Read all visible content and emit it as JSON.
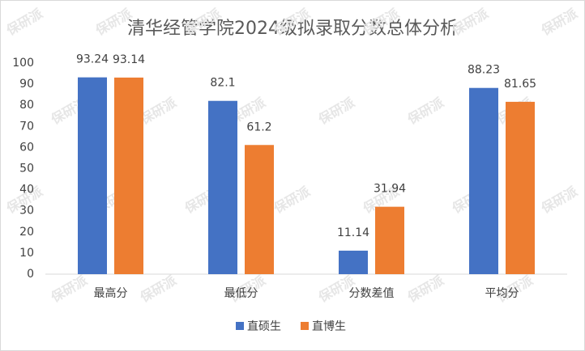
{
  "chart_data": {
    "type": "bar",
    "title": "清华经管学院2024级拟录取分数总体分析",
    "categories": [
      "最高分",
      "最低分",
      "分数差值",
      "平均分"
    ],
    "series": [
      {
        "name": "直硕生",
        "color": "#4472c4",
        "values": [
          93.24,
          82.1,
          11.14,
          88.23
        ]
      },
      {
        "name": "直博生",
        "color": "#ed7d31",
        "values": [
          93.14,
          61.2,
          31.94,
          81.65
        ]
      }
    ],
    "ylim": [
      0,
      100
    ],
    "yticks": [
      0,
      10,
      20,
      30,
      40,
      50,
      60,
      70,
      80,
      90,
      100
    ],
    "grid": false,
    "legend": "bottom",
    "watermark": "保研派"
  }
}
